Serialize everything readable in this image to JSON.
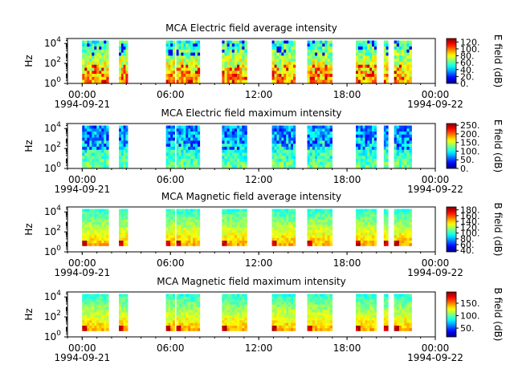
{
  "chart_data": [
    {
      "type": "heatmap",
      "title": "MCA  Electric field average intensity",
      "ylabel": "Hz",
      "colorbar_label": "E field (dB)",
      "colorbar_ticks": [
        "0.",
        "20.",
        "40.",
        "60.",
        "80.",
        "100.",
        "120."
      ],
      "colorbar_range": [
        0,
        130
      ],
      "ylim_exp": [
        0,
        4.5
      ],
      "ytick_labels": [
        {
          "base": "10",
          "exp": "0"
        },
        {
          "base": "10",
          "exp": "2"
        },
        {
          "base": "10",
          "exp": "4"
        }
      ],
      "xtick_labels": [
        "00:00",
        "06:00",
        "12:00",
        "18:00",
        "00:00"
      ],
      "date_labels": [
        "1994-09-21",
        "1994-09-22"
      ],
      "data_blocks_hours": [
        [
          0,
          1.8
        ],
        [
          2.5,
          3.1
        ],
        [
          5.7,
          6.3
        ],
        [
          6.4,
          8.0
        ],
        [
          9.5,
          11.2
        ],
        [
          12.9,
          14.5
        ],
        [
          15.3,
          17.0
        ],
        [
          18.6,
          20.0
        ],
        [
          20.5,
          20.8
        ],
        [
          21.2,
          22.4
        ]
      ]
    },
    {
      "type": "heatmap",
      "title": "MCA  Electric field maximum intensity",
      "ylabel": "Hz",
      "colorbar_label": "E field (dB)",
      "colorbar_ticks": [
        "0.",
        "50.",
        "100.",
        "150.",
        "200.",
        "250."
      ],
      "colorbar_range": [
        0,
        260
      ],
      "ylim_exp": [
        0,
        4.5
      ],
      "ytick_labels": [
        {
          "base": "10",
          "exp": "0"
        },
        {
          "base": "10",
          "exp": "2"
        },
        {
          "base": "10",
          "exp": "4"
        }
      ],
      "xtick_labels": [
        "00:00",
        "06:00",
        "12:00",
        "18:00",
        "00:00"
      ],
      "date_labels": [
        "1994-09-21",
        "1994-09-22"
      ],
      "data_blocks_hours": [
        [
          0,
          1.8
        ],
        [
          2.5,
          3.1
        ],
        [
          5.7,
          6.3
        ],
        [
          6.4,
          8.0
        ],
        [
          9.5,
          11.2
        ],
        [
          12.9,
          14.5
        ],
        [
          15.3,
          17.0
        ],
        [
          18.6,
          20.0
        ],
        [
          20.5,
          20.8
        ],
        [
          21.2,
          22.4
        ]
      ]
    },
    {
      "type": "heatmap",
      "title": "MCA  Magnetic field average intensity",
      "ylabel": "Hz",
      "colorbar_label": "B field (dB)",
      "colorbar_ticks": [
        "40.",
        "60.",
        "80.",
        "100.",
        "120.",
        "140.",
        "160.",
        "180."
      ],
      "colorbar_range": [
        35,
        190
      ],
      "ylim_exp": [
        0,
        4.5
      ],
      "ytick_labels": [
        {
          "base": "10",
          "exp": "0"
        },
        {
          "base": "10",
          "exp": "2"
        },
        {
          "base": "10",
          "exp": "4"
        }
      ],
      "xtick_labels": [
        "00:00",
        "06:00",
        "12:00",
        "18:00",
        "00:00"
      ],
      "date_labels": [
        "1994-09-21",
        "1994-09-22"
      ],
      "data_blocks_hours": [
        [
          0,
          1.8
        ],
        [
          2.5,
          3.1
        ],
        [
          5.7,
          6.3
        ],
        [
          6.4,
          8.0
        ],
        [
          9.5,
          11.2
        ],
        [
          12.9,
          14.5
        ],
        [
          15.3,
          17.0
        ],
        [
          18.6,
          20.0
        ],
        [
          20.5,
          20.8
        ],
        [
          21.2,
          22.4
        ]
      ]
    },
    {
      "type": "heatmap",
      "title": "MCA  Magnetic field maximum intensity",
      "ylabel": "Hz",
      "colorbar_label": "B field (dB)",
      "colorbar_ticks": [
        "50.",
        "100.",
        "150."
      ],
      "colorbar_range": [
        15,
        195
      ],
      "ylim_exp": [
        0,
        4.5
      ],
      "ytick_labels": [
        {
          "base": "10",
          "exp": "0"
        },
        {
          "base": "10",
          "exp": "2"
        },
        {
          "base": "10",
          "exp": "4"
        }
      ],
      "xtick_labels": [
        "00:00",
        "06:00",
        "12:00",
        "18:00",
        "00:00"
      ],
      "date_labels": [
        "1994-09-21",
        "1994-09-22"
      ],
      "data_blocks_hours": [
        [
          0,
          1.8
        ],
        [
          2.5,
          3.1
        ],
        [
          5.7,
          6.3
        ],
        [
          6.4,
          8.0
        ],
        [
          9.5,
          11.2
        ],
        [
          12.9,
          14.5
        ],
        [
          15.3,
          17.0
        ],
        [
          18.6,
          20.0
        ],
        [
          20.5,
          20.8
        ],
        [
          21.2,
          22.4
        ]
      ]
    }
  ],
  "xaxis": {
    "range_hours": [
      -1,
      24
    ],
    "major_tick_hours": [
      0,
      6,
      12,
      18,
      24
    ],
    "minor_tick_step_hours": 1
  }
}
